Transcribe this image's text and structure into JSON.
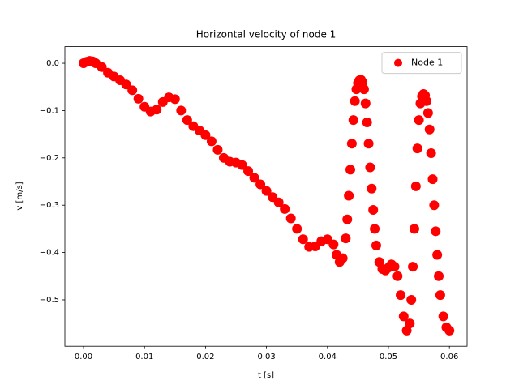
{
  "chart_data": {
    "type": "scatter",
    "title": "Horizontal velocity of node 1",
    "xlabel": "t [s]",
    "ylabel": "v [m/s]",
    "legend": "upper right",
    "xlim": [
      -0.00306,
      0.0629
    ],
    "ylim": [
      -0.598,
      0.035
    ],
    "xticks": [
      {
        "value": 0,
        "label": "0.00"
      },
      0.01,
      0.02,
      0.03,
      0.04,
      0.05,
      0.06
    ],
    "yticks": [
      {
        "value": 0,
        "label": "0.0"
      },
      {
        "value": -0.1,
        "label": "−0.1"
      },
      {
        "value": -0.2,
        "label": "−0.2"
      },
      {
        "value": -0.3,
        "label": "−0.3"
      },
      {
        "value": -0.4,
        "label": "−0.4"
      },
      {
        "value": -0.5,
        "label": "−0.5"
      }
    ],
    "x": [
      0,
      0.0005,
      0.001,
      0.0015,
      0.002,
      0.003,
      0.004,
      0.005,
      0.006,
      0.007,
      0.008,
      0.009,
      0.01,
      0.011,
      0.012,
      0.013,
      0.014,
      0.015,
      0.016,
      0.017,
      0.018,
      0.019,
      0.02,
      0.021,
      0.022,
      0.023,
      0.024,
      0.025,
      0.026,
      0.027,
      0.028,
      0.029,
      0.03,
      0.031,
      0.032,
      0.033,
      0.034,
      0.035,
      0.036,
      0.037,
      0.038,
      0.039,
      0.04,
      0.041,
      0.0415,
      0.042,
      0.0425,
      0.043,
      0.04325,
      0.0435,
      0.04375,
      0.044,
      0.04425,
      0.0445,
      0.04475,
      0.045,
      0.04525,
      0.0455,
      0.04575,
      0.046,
      0.04625,
      0.0465,
      0.04675,
      0.047,
      0.04725,
      0.0475,
      0.04775,
      0.048,
      0.0485,
      0.049,
      0.0495,
      0.05,
      0.0505,
      0.051,
      0.0515,
      0.052,
      0.0525,
      0.053,
      0.0535,
      0.05375,
      0.054,
      0.05425,
      0.0545,
      0.05475,
      0.055,
      0.05525,
      0.0555,
      0.05575,
      0.056,
      0.05625,
      0.0565,
      0.05675,
      0.057,
      0.05725,
      0.0575,
      0.05775,
      0.058,
      0.05825,
      0.0585,
      0.059,
      0.0595,
      0.06
    ],
    "series": [
      {
        "name": "Node 1",
        "color": "#ff0000",
        "values": [
          0,
          0.003,
          0.005,
          0.004,
          0.0,
          -0.008,
          -0.02,
          -0.028,
          -0.036,
          -0.045,
          -0.057,
          -0.075,
          -0.092,
          -0.102,
          -0.098,
          -0.082,
          -0.072,
          -0.076,
          -0.1,
          -0.12,
          -0.133,
          -0.142,
          -0.152,
          -0.165,
          -0.183,
          -0.2,
          -0.208,
          -0.21,
          -0.215,
          -0.228,
          -0.242,
          -0.256,
          -0.27,
          -0.283,
          -0.294,
          -0.308,
          -0.328,
          -0.35,
          -0.372,
          -0.388,
          -0.387,
          -0.376,
          -0.372,
          -0.383,
          -0.405,
          -0.42,
          -0.412,
          -0.37,
          -0.33,
          -0.28,
          -0.225,
          -0.17,
          -0.12,
          -0.08,
          -0.055,
          -0.042,
          -0.036,
          -0.035,
          -0.04,
          -0.055,
          -0.085,
          -0.125,
          -0.17,
          -0.22,
          -0.265,
          -0.31,
          -0.35,
          -0.385,
          -0.42,
          -0.435,
          -0.438,
          -0.432,
          -0.425,
          -0.43,
          -0.45,
          -0.49,
          -0.535,
          -0.565,
          -0.55,
          -0.5,
          -0.43,
          -0.35,
          -0.26,
          -0.18,
          -0.12,
          -0.085,
          -0.07,
          -0.065,
          -0.068,
          -0.08,
          -0.105,
          -0.14,
          -0.19,
          -0.245,
          -0.3,
          -0.355,
          -0.405,
          -0.45,
          -0.49,
          -0.535,
          -0.558,
          -0.565
        ]
      }
    ]
  }
}
